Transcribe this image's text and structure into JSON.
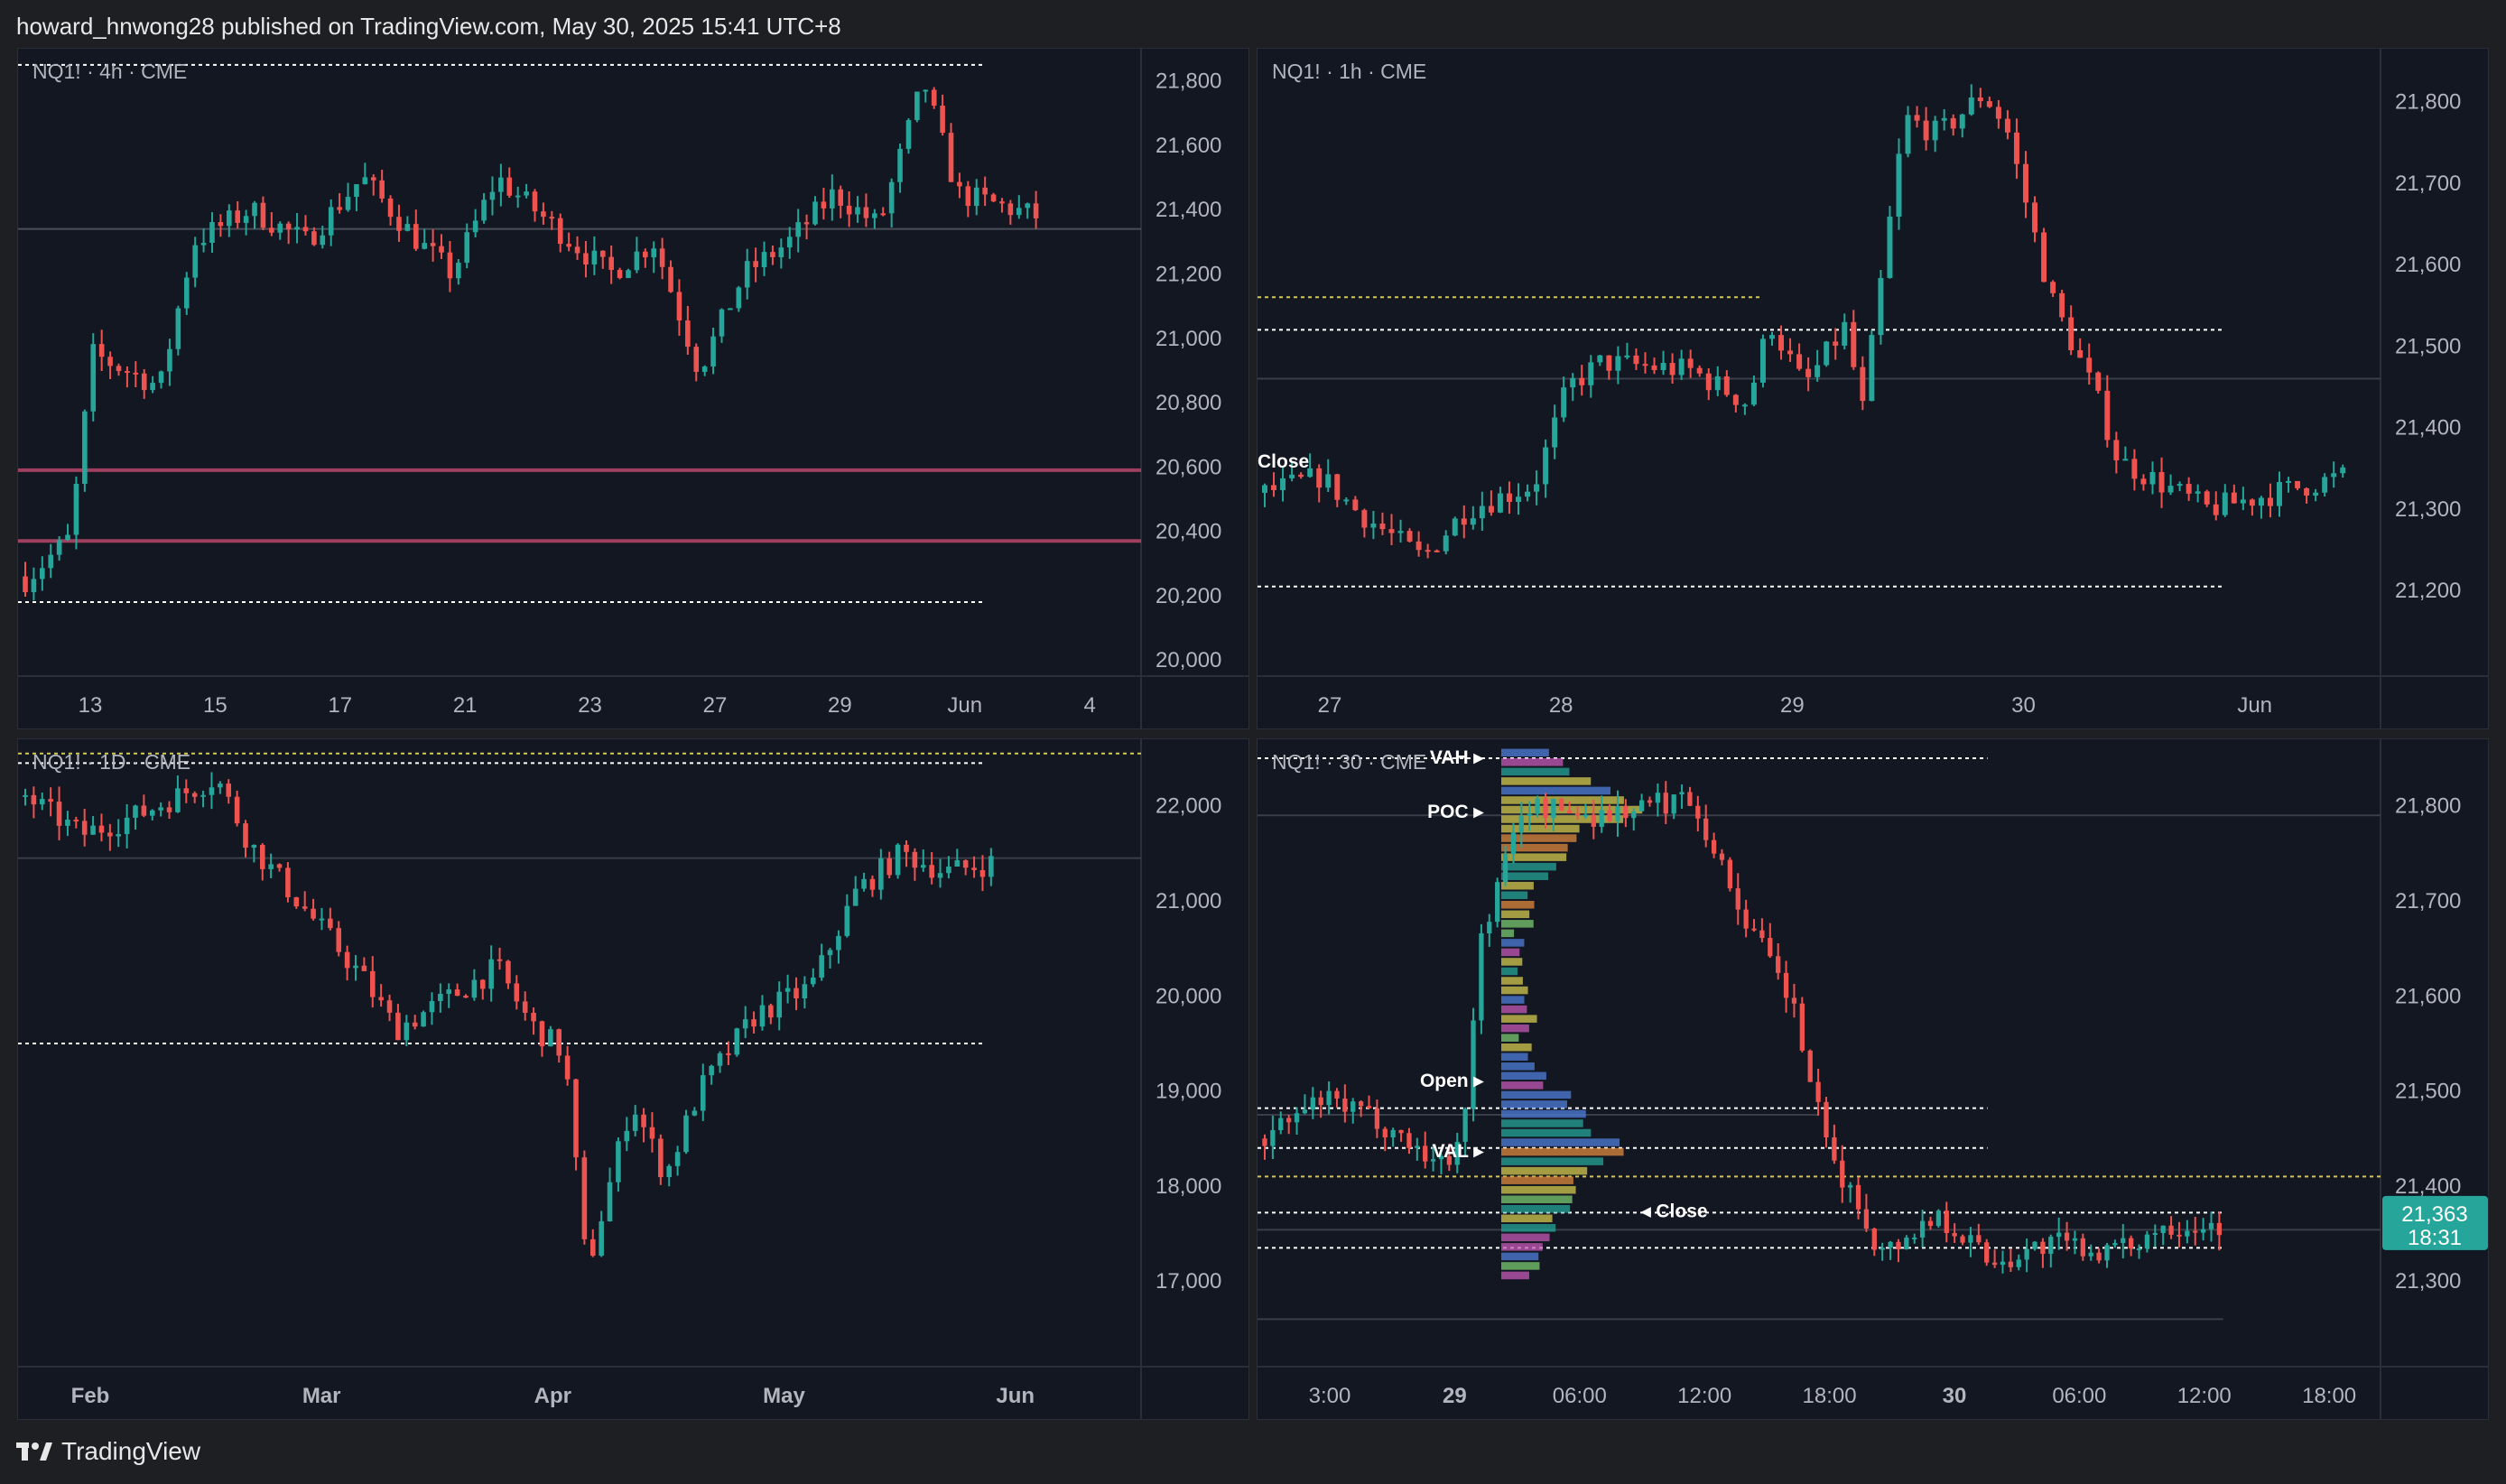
{
  "header": {
    "text": "howard_hnwong28 published on TradingView.com, May 30, 2025 15:41 UTC+8"
  },
  "footer": {
    "brand": "TradingView",
    "logo_icon": "tradingview-logo-icon"
  },
  "colors": {
    "up": "#26a69a",
    "down": "#ef5350",
    "bg": "#131722",
    "grid": "#2a2e39",
    "text": "#b2b5be",
    "zone": "#a0405f"
  },
  "chart_data": [
    {
      "id": "p4h",
      "type": "candlestick",
      "symbol_label": "NQ1! · 4h · CME",
      "ylim": [
        19950,
        21900
      ],
      "y_ticks": [
        20000,
        20200,
        20400,
        20600,
        20800,
        21000,
        21200,
        21400,
        21600,
        21800
      ],
      "x_ticks": [
        "13",
        "15",
        "17",
        "21",
        "23",
        "27",
        "29",
        "Jun",
        "4"
      ],
      "open": 20260,
      "trend": [
        [
          0,
          20250
        ],
        [
          0.04,
          20380
        ],
        [
          0.06,
          20950
        ],
        [
          0.12,
          20850
        ],
        [
          0.15,
          21300
        ],
        [
          0.2,
          21400
        ],
        [
          0.25,
          21300
        ],
        [
          0.3,
          21500
        ],
        [
          0.35,
          21300
        ],
        [
          0.38,
          21200
        ],
        [
          0.42,
          21500
        ],
        [
          0.47,
          21350
        ],
        [
          0.52,
          21200
        ],
        [
          0.56,
          21300
        ],
        [
          0.6,
          20900
        ],
        [
          0.64,
          21200
        ],
        [
          0.68,
          21300
        ],
        [
          0.72,
          21450
        ],
        [
          0.76,
          21350
        ],
        [
          0.8,
          21800
        ],
        [
          0.83,
          21450
        ],
        [
          0.9,
          21380
        ]
      ],
      "levels": [
        {
          "price": 21850,
          "style": "dotted",
          "color": "#ffffff",
          "to": 0.86
        },
        {
          "price": 21340,
          "style": "solid",
          "color": "#4a4e59",
          "to": 1.0
        },
        {
          "price": 20590,
          "style": "solid",
          "color": "#a0405f",
          "to": 1.0
        },
        {
          "price": 20370,
          "style": "solid",
          "color": "#a0405f",
          "to": 1.0
        },
        {
          "price": 20180,
          "style": "dotted",
          "color": "#ffffff",
          "to": 0.86
        }
      ],
      "labels": []
    },
    {
      "id": "p1h",
      "type": "candlestick",
      "symbol_label": "NQ1! · 1h · CME",
      "ylim": [
        21095,
        21865
      ],
      "y_ticks": [
        21200,
        21300,
        21400,
        21500,
        21600,
        21700,
        21800
      ],
      "x_ticks": [
        "27",
        "28",
        "29",
        "30",
        "Jun"
      ],
      "open": 21320,
      "trend": [
        [
          0,
          21320
        ],
        [
          0.05,
          21340
        ],
        [
          0.08,
          21300
        ],
        [
          0.14,
          21240
        ],
        [
          0.18,
          21300
        ],
        [
          0.2,
          21310
        ],
        [
          0.24,
          21330
        ],
        [
          0.27,
          21450
        ],
        [
          0.3,
          21480
        ],
        [
          0.38,
          21470
        ],
        [
          0.43,
          21430
        ],
        [
          0.45,
          21530
        ],
        [
          0.48,
          21450
        ],
        [
          0.52,
          21530
        ],
        [
          0.53,
          21400
        ],
        [
          0.57,
          21780
        ],
        [
          0.6,
          21760
        ],
        [
          0.64,
          21810
        ],
        [
          0.66,
          21770
        ],
        [
          0.7,
          21560
        ],
        [
          0.74,
          21440
        ],
        [
          0.76,
          21360
        ],
        [
          0.8,
          21330
        ],
        [
          0.84,
          21300
        ],
        [
          0.9,
          21320
        ],
        [
          0.96,
          21340
        ]
      ],
      "levels": [
        {
          "price": 21560,
          "style": "dotted",
          "color": "#d4c94e",
          "to": 0.45
        },
        {
          "price": 21520,
          "style": "dotted",
          "color": "#ffffff",
          "to": 0.86
        },
        {
          "price": 21460,
          "style": "solid",
          "color": "#3a3e49",
          "to": 1.0
        },
        {
          "price": 21205,
          "style": "dotted",
          "color": "#ffffff",
          "to": 0.86
        }
      ],
      "labels": [
        {
          "text": "Close",
          "price": 21360,
          "pos": "left"
        }
      ]
    },
    {
      "id": "p1d",
      "type": "candlestick",
      "symbol_label": "NQ1! · 1D · CME",
      "ylim": [
        16100,
        22700
      ],
      "y_ticks": [
        17000,
        18000,
        19000,
        20000,
        21000,
        22000
      ],
      "x_ticks": [
        "Feb",
        "Mar",
        "Apr",
        "May",
        "Jun"
      ],
      "open": 22100,
      "trend": [
        [
          0,
          22100
        ],
        [
          0.05,
          21700
        ],
        [
          0.1,
          21900
        ],
        [
          0.17,
          22300
        ],
        [
          0.2,
          21600
        ],
        [
          0.25,
          20900
        ],
        [
          0.3,
          20200
        ],
        [
          0.33,
          19650
        ],
        [
          0.38,
          20000
        ],
        [
          0.42,
          20300
        ],
        [
          0.45,
          19700
        ],
        [
          0.48,
          19400
        ],
        [
          0.5,
          17100
        ],
        [
          0.54,
          18900
        ],
        [
          0.57,
          18100
        ],
        [
          0.6,
          19000
        ],
        [
          0.65,
          19800
        ],
        [
          0.7,
          20100
        ],
        [
          0.74,
          21100
        ],
        [
          0.78,
          21500
        ],
        [
          0.82,
          21300
        ],
        [
          0.86,
          21400
        ]
      ],
      "levels": [
        {
          "price": 22550,
          "style": "dotted",
          "color": "#d4c94e",
          "to": 1.0
        },
        {
          "price": 22450,
          "style": "dotted",
          "color": "#ffffff",
          "to": 0.86
        },
        {
          "price": 21450,
          "style": "solid",
          "color": "#3a3e49",
          "to": 1.0
        },
        {
          "price": 19500,
          "style": "dotted",
          "color": "#ffffff",
          "to": 0.86
        }
      ],
      "labels": []
    },
    {
      "id": "p30",
      "type": "candlestick",
      "symbol_label": "NQ1! · 30 · CME",
      "ylim": [
        21210,
        21870
      ],
      "y_ticks": [
        21300,
        21400,
        21500,
        21600,
        21700,
        21800
      ],
      "x_ticks": [
        "3:00",
        "29",
        "06:00",
        "12:00",
        "18:00",
        "30",
        "06:00",
        "12:00",
        "18:00"
      ],
      "last_price": "21,363",
      "countdown": "18:31",
      "open": 21450,
      "trend": [
        [
          0,
          21450
        ],
        [
          0.05,
          21490
        ],
        [
          0.1,
          21470
        ],
        [
          0.16,
          21420
        ],
        [
          0.18,
          21480
        ],
        [
          0.19,
          21650
        ],
        [
          0.23,
          21800
        ],
        [
          0.3,
          21790
        ],
        [
          0.38,
          21810
        ],
        [
          0.42,
          21700
        ],
        [
          0.47,
          21590
        ],
        [
          0.5,
          21440
        ],
        [
          0.55,
          21330
        ],
        [
          0.6,
          21370
        ],
        [
          0.65,
          21320
        ],
        [
          0.7,
          21340
        ],
        [
          0.76,
          21330
        ],
        [
          0.8,
          21360
        ],
        [
          0.85,
          21360
        ]
      ],
      "levels": [
        {
          "price": 21850,
          "style": "dotted",
          "color": "#ffffff",
          "to": 0.65
        },
        {
          "price": 21790,
          "style": "solid",
          "color": "#3a3e49",
          "to": 1.0
        },
        {
          "price": 21482,
          "style": "dotted",
          "color": "#ffffff",
          "to": 0.65
        },
        {
          "price": 21475,
          "style": "solid",
          "color": "#3a3e49",
          "to": 0.5
        },
        {
          "price": 21440,
          "style": "dotted",
          "color": "#ffffff",
          "to": 0.65
        },
        {
          "price": 21410,
          "style": "dotted",
          "color": "#d4c94e",
          "to": 1.0
        },
        {
          "price": 21372,
          "style": "dotted",
          "color": "#ffffff",
          "to": 0.86
        },
        {
          "price": 21354,
          "style": "solid",
          "color": "#3a3e49",
          "to": 1.0
        },
        {
          "price": 21335,
          "style": "dotted",
          "color": "#ffffff",
          "to": 0.86
        },
        {
          "price": 21260,
          "style": "solid",
          "color": "#3a3e49",
          "to": 0.86
        }
      ],
      "labels": [
        {
          "text": "VAH",
          "price": 21852,
          "pos": "profile"
        },
        {
          "text": "POC",
          "price": 21795,
          "pos": "profile"
        },
        {
          "text": "Open",
          "price": 21512,
          "pos": "profile"
        },
        {
          "text": "VAL",
          "price": 21438,
          "pos": "profile"
        },
        {
          "text": "Close",
          "price": 21375,
          "pos": "profile-right"
        }
      ]
    }
  ]
}
